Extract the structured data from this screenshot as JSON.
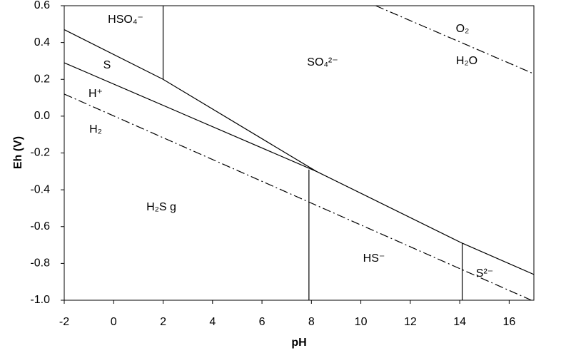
{
  "chart_data": {
    "type": "line",
    "xlabel": "pH",
    "ylabel": "Eh (V)",
    "xlim": [
      -2,
      17
    ],
    "ylim": [
      -1.0,
      0.6
    ],
    "xticks": [
      -2,
      0,
      2,
      4,
      6,
      8,
      10,
      12,
      14,
      16
    ],
    "yticks": [
      {
        "value": -1.0,
        "label": "-1.0"
      },
      -0.8,
      -0.6,
      -0.4,
      -0.2,
      {
        "value": 0,
        "label": "0.0"
      },
      0.2,
      0.4,
      0.6
    ],
    "series": [
      {
        "color": "#000000",
        "dash": "dash-dot",
        "x": [
          10.6,
          17
        ],
        "values": [
          0.6,
          0.23
        ]
      },
      {
        "color": "#000000",
        "dash": "dash-dot",
        "x": [
          -2,
          16.9
        ],
        "values": [
          0.12,
          -1.0
        ]
      },
      {
        "color": "#000000",
        "dash": "solid",
        "x": [
          2,
          2
        ],
        "values": [
          0.6,
          0.2
        ]
      },
      {
        "color": "#000000",
        "dash": "solid",
        "x": [
          -2,
          2,
          8.2,
          14.1,
          17
        ],
        "values": [
          0.47,
          0.2,
          -0.3,
          -0.69,
          -0.86
        ]
      },
      {
        "color": "#000000",
        "dash": "solid",
        "x": [
          -2,
          8.2
        ],
        "values": [
          0.29,
          -0.3
        ]
      },
      {
        "color": "#000000",
        "dash": "solid",
        "x": [
          7.9,
          7.9
        ],
        "values": [
          -0.29,
          -1.0
        ]
      },
      {
        "color": "#000000",
        "dash": "solid",
        "x": [
          14.1,
          14.1
        ],
        "values": [
          -0.69,
          -1.0
        ]
      }
    ],
    "annotations": [
      "HSO₄⁻",
      "S",
      "SO₄²⁻",
      "O₂",
      "H₂O",
      "H⁺",
      "H₂",
      "H₂S g",
      "HS⁻",
      "S²⁻"
    ]
  }
}
